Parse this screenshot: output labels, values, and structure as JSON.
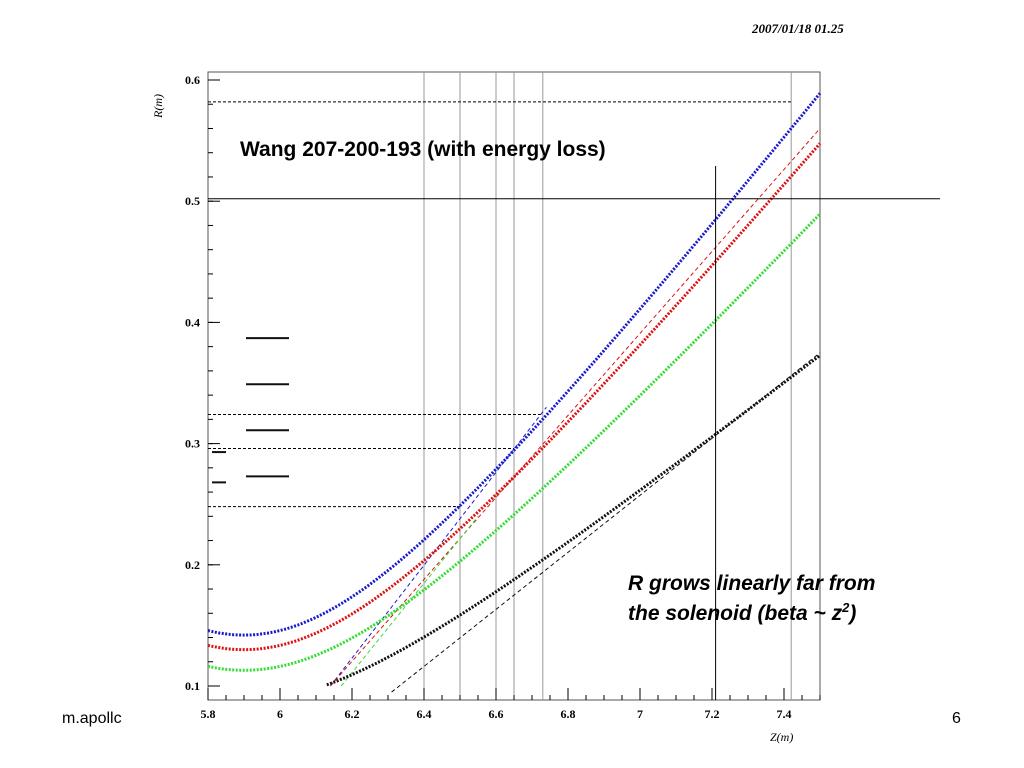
{
  "slide": {
    "timestamp": "2007/01/18   01.25",
    "footer_left": "m.apollc",
    "page_number": "6"
  },
  "chart_data": {
    "type": "line",
    "title": "Wang 207-200-193 (with energy loss)",
    "annotation_line1": "R grows linearly far from",
    "annotation_line2_prefix": "the solenoid (beta ~ z",
    "annotation_sup": "2",
    "annotation_line2_suffix": ")",
    "xlabel": "Z(m)",
    "ylabel": "R(m)",
    "xlim": [
      5.8,
      7.5
    ],
    "ylim": [
      0.1,
      0.6
    ],
    "x_ticks": [
      5.8,
      6,
      6.2,
      6.4,
      6.6,
      6.8,
      7,
      7.2,
      7.4
    ],
    "x_tick_labels": [
      "5.8",
      "6",
      "6.2",
      "6.4",
      "6.6",
      "6.8",
      "7",
      "7.2",
      "7.4"
    ],
    "y_ticks": [
      0.1,
      0.2,
      0.3,
      0.4,
      0.5,
      0.6
    ],
    "y_tick_labels": [
      "0.1",
      "0.2",
      "0.3",
      "0.4",
      "0.5",
      "0.6"
    ],
    "grid": false,
    "colors": {
      "blue": "#1a1acc",
      "red": "#dd1111",
      "green": "#33dd33",
      "black": "#111111"
    },
    "series": [
      {
        "color": "blue",
        "r0": 0.142,
        "z0": 5.9,
        "slope": 0.38,
        "c": 0.5
      },
      {
        "color": "red",
        "r0": 0.13,
        "z0": 5.9,
        "slope": 0.355,
        "c": 0.5
      },
      {
        "color": "green",
        "r0": 0.113,
        "z0": 5.9,
        "slope": 0.32,
        "c": 0.5
      },
      {
        "color": "black",
        "r0": 0.088,
        "z0": 5.9,
        "slope": 0.235,
        "c": 0.45
      }
    ],
    "asymptotes": [
      {
        "color": "blue",
        "points": [
          [
            6.14,
            0.1
          ],
          [
            6.74,
            0.33
          ]
        ]
      },
      {
        "color": "red",
        "points": [
          [
            6.14,
            0.1
          ],
          [
            7.5,
            0.56
          ]
        ]
      },
      {
        "color": "green",
        "points": [
          [
            6.17,
            0.1
          ],
          [
            6.55,
            0.24
          ]
        ]
      },
      {
        "color": "black",
        "points": [
          [
            6.31,
            0.095
          ],
          [
            7.5,
            0.375
          ]
        ]
      }
    ],
    "vertical_lines": [
      6.4,
      6.5,
      6.6,
      6.65,
      6.73,
      7.42
    ],
    "dashed_levels": [
      {
        "y": 0.582,
        "x_end": 7.42
      },
      {
        "y": 0.324,
        "x_end": 6.73
      },
      {
        "y": 0.296,
        "x_end": 6.65
      },
      {
        "y": 0.248,
        "x_end": 6.5
      }
    ],
    "crosshair": {
      "x": 7.21,
      "y": 0.502
    },
    "legend_marks": [
      0.387,
      0.349,
      0.311,
      0.273
    ],
    "left_marks": [
      0.293,
      0.268
    ]
  }
}
